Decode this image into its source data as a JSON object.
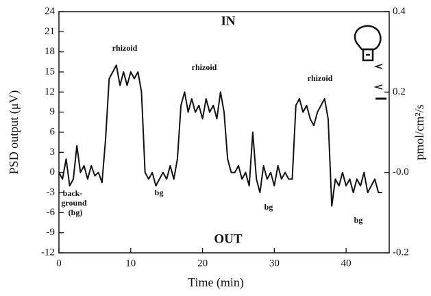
{
  "chart_data": {
    "type": "line",
    "y_label": "PSD output (μV)",
    "x_label": "Time (min)",
    "y2_label": "pmol/cm²/s",
    "annotations": {
      "in": "IN",
      "out": "OUT",
      "rhizoid": [
        "rhizoid",
        "rhizoid",
        "rhizoid"
      ],
      "bg": [
        "bg",
        "bg",
        "bg"
      ],
      "background": [
        "back-",
        "ground",
        "(bg)"
      ]
    },
    "color": "#111111",
    "x": [
      0,
      0.5,
      1,
      1.5,
      2,
      2.5,
      3,
      3.5,
      4,
      4.5,
      5,
      5.5,
      6,
      6.5,
      7,
      7.5,
      8,
      8.5,
      9,
      9.5,
      10,
      10.5,
      11,
      11.5,
      12,
      12.5,
      13,
      13.5,
      14,
      14.5,
      15,
      15.5,
      16,
      16.5,
      17,
      17.5,
      18,
      18.5,
      19,
      19.5,
      20,
      20.5,
      21,
      21.5,
      22,
      22.5,
      23,
      23.5,
      24,
      24.5,
      25,
      25.5,
      26,
      26.5,
      27,
      27.5,
      28,
      28.5,
      29,
      29.5,
      30,
      30.5,
      31,
      31.5,
      32,
      32.5,
      33,
      33.5,
      34,
      34.5,
      35,
      35.5,
      36,
      36.5,
      37,
      37.5,
      38,
      38.5,
      39,
      39.5,
      40,
      40.5,
      41,
      41.5,
      42,
      42.5,
      43,
      43.5,
      44,
      44.5,
      45
    ],
    "values": [
      0,
      -1,
      2,
      -2,
      -1,
      4,
      0,
      1,
      -1,
      1,
      -0.5,
      0,
      -1.5,
      5,
      14,
      15,
      16,
      13,
      15,
      13,
      15,
      14,
      15,
      12,
      0,
      -1,
      0,
      -2,
      -1,
      0,
      -1,
      1,
      -1,
      2,
      10,
      12,
      9,
      11,
      9,
      10,
      8,
      11,
      9,
      10,
      8,
      12,
      9,
      2,
      0,
      0,
      1,
      -1,
      0,
      -2,
      6,
      -1,
      -3,
      1,
      -1,
      0,
      -2,
      1,
      -1,
      0,
      -1,
      -1,
      10,
      11,
      9,
      10,
      8,
      7,
      9,
      10,
      11,
      8,
      -5,
      -1,
      -2,
      0,
      -2,
      -1,
      -3,
      -1,
      -2,
      0,
      -3,
      -2,
      -1,
      -3,
      -3
    ],
    "xlim": [
      0,
      46
    ],
    "xticks": [
      0,
      10,
      20,
      30,
      40
    ],
    "ylim": [
      -12,
      24
    ],
    "yticks": [
      -12,
      -9,
      -6,
      -3,
      0,
      3,
      6,
      9,
      12,
      15,
      18,
      21,
      24
    ],
    "y2lim": [
      -0.2,
      0.4
    ],
    "y2ticks": [
      -0.2,
      {
        "value": 0,
        "label": "-0.0"
      },
      0.2,
      0.4
    ]
  }
}
